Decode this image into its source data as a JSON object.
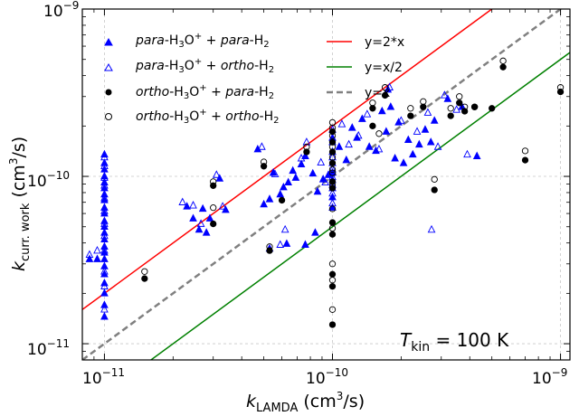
{
  "chart_data": {
    "type": "scatter",
    "xscale": "log",
    "yscale": "log",
    "xlim": [
      8e-12,
      1.1e-09
    ],
    "ylim": [
      8e-12,
      1e-09
    ],
    "grid": true,
    "legend_placement": "top-left",
    "x_major_ticks": [
      1e-11,
      1e-10,
      1e-09
    ],
    "y_major_ticks": [
      1e-11,
      1e-10,
      1e-09
    ],
    "x_tick_labels": [
      {
        "base": "10",
        "exp": "−11"
      },
      {
        "base": "10",
        "exp": "−10"
      },
      {
        "base": "10",
        "exp": "−9"
      }
    ],
    "y_tick_labels": [
      {
        "base": "10",
        "exp": "−11"
      },
      {
        "base": "10",
        "exp": "−10"
      },
      {
        "base": "10",
        "exp": "−9"
      }
    ],
    "xlabel": {
      "base": "k",
      "sub": "LAMDA",
      "unit": " (cm",
      "unit_exp": "3",
      "unit_end": "/s)"
    },
    "ylabel": {
      "base": "k",
      "sub": "curr. work",
      "unit": " (cm",
      "unit_exp": "3",
      "unit_end": "/s)"
    },
    "annotation": {
      "base": "T",
      "sub": "kin",
      "rest": " = 100 K"
    },
    "legend": [
      {
        "label": "para-H3O+ + para-H2",
        "marker": "triangle-filled",
        "color": "#0000ff"
      },
      {
        "label": "para-H3O+ + ortho-H2",
        "marker": "triangle-open",
        "color": "#0000ff"
      },
      {
        "label": "ortho-H3O+ + para-H2",
        "marker": "circle-filled",
        "color": "#000000"
      },
      {
        "label": "ortho-H3O+ + ortho-H2",
        "marker": "circle-open",
        "color": "#000000"
      },
      {
        "label": "y=2*x",
        "style": "solid",
        "color": "#ff0000"
      },
      {
        "label": "y=x/2",
        "style": "solid",
        "color": "#008000"
      },
      {
        "label": "y=x",
        "style": "dashed",
        "color": "#808080"
      }
    ],
    "lines": [
      {
        "name": "y=2*x",
        "factor": 2,
        "color": "#ff0000"
      },
      {
        "name": "y=x/2",
        "factor": 0.5,
        "color": "#008000"
      },
      {
        "name": "y=x",
        "factor": 1,
        "color": "#808080",
        "dashed": true
      }
    ],
    "series": [
      {
        "name": "para-H3O+ + para-H2",
        "marker": "triangle-filled",
        "color": "#0000ff",
        "points": [
          [
            1e-11,
            1.35e-10
          ],
          [
            1e-11,
            1.2e-10
          ],
          [
            1e-11,
            1.1e-10
          ],
          [
            1e-11,
            1e-10
          ],
          [
            1e-11,
            9.2e-11
          ],
          [
            1e-11,
            8.5e-11
          ],
          [
            1e-11,
            7.8e-11
          ],
          [
            1e-11,
            7.2e-11
          ],
          [
            1e-11,
            6.5e-11
          ],
          [
            1e-11,
            6e-11
          ],
          [
            1e-11,
            5.4e-11
          ],
          [
            1e-11,
            5e-11
          ],
          [
            1e-11,
            4.6e-11
          ],
          [
            1e-11,
            4.2e-11
          ],
          [
            1e-11,
            3.8e-11
          ],
          [
            1e-11,
            3.5e-11
          ],
          [
            1e-11,
            3.2e-11
          ],
          [
            1e-11,
            2.9e-11
          ],
          [
            1e-11,
            2.6e-11
          ],
          [
            1e-11,
            2.3e-11
          ],
          [
            1e-11,
            2e-11
          ],
          [
            1e-11,
            1.7e-11
          ],
          [
            1e-11,
            1.45e-11
          ],
          [
            8.6e-12,
            3.2e-11
          ],
          [
            9.3e-12,
            3.2e-11
          ],
          [
            2.3e-11,
            6.6e-11
          ],
          [
            2.6e-11,
            4.8e-11
          ],
          [
            2.7e-11,
            6.4e-11
          ],
          [
            2.9e-11,
            5.6e-11
          ],
          [
            3.4e-11,
            6.3e-11
          ],
          [
            3.2e-11,
            9.7e-11
          ],
          [
            4.7e-11,
            1.45e-10
          ],
          [
            5e-11,
            6.8e-11
          ],
          [
            5.3e-11,
            7.3e-11
          ],
          [
            5.5e-11,
            1.05e-10
          ],
          [
            5.9e-11,
            7.8e-11
          ],
          [
            6.1e-11,
            8.6e-11
          ],
          [
            6.4e-11,
            9.2e-11
          ],
          [
            6.7e-11,
            1.08e-10
          ],
          [
            6.9e-11,
            9.8e-11
          ],
          [
            7.3e-11,
            1.18e-10
          ],
          [
            7.6e-11,
            1.32e-10
          ],
          [
            8.2e-11,
            1.04e-10
          ],
          [
            8.6e-11,
            8.1e-11
          ],
          [
            9.1e-11,
            9.6e-11
          ],
          [
            9.6e-11,
            1.02e-10
          ],
          [
            1e-10,
            1.7e-10
          ],
          [
            1e-10,
            1.4e-10
          ],
          [
            1e-10,
            1.2e-10
          ],
          [
            1e-10,
            1.05e-10
          ],
          [
            1e-10,
            9.5e-11
          ],
          [
            1e-10,
            8.5e-11
          ],
          [
            1e-10,
            7.5e-11
          ],
          [
            1e-10,
            6.5e-11
          ],
          [
            1.07e-10,
            1.5e-10
          ],
          [
            1.15e-10,
            1.25e-10
          ],
          [
            1.22e-10,
            1.95e-10
          ],
          [
            1.28e-10,
            1.7e-10
          ],
          [
            1.35e-10,
            2.2e-10
          ],
          [
            1.45e-10,
            1.5e-10
          ],
          [
            1.55e-10,
            1.42e-10
          ],
          [
            1.65e-10,
            2.45e-10
          ],
          [
            1.72e-10,
            1.85e-10
          ],
          [
            1.8e-10,
            2.6e-10
          ],
          [
            1.88e-10,
            1.28e-10
          ],
          [
            1.95e-10,
            2.1e-10
          ],
          [
            2.05e-10,
            1.2e-10
          ],
          [
            2.15e-10,
            1.65e-10
          ],
          [
            2.25e-10,
            1.35e-10
          ],
          [
            2.4e-10,
            1.55e-10
          ],
          [
            2.55e-10,
            1.9e-10
          ],
          [
            2.7e-10,
            1.6e-10
          ],
          [
            2.8e-10,
            2.15e-10
          ],
          [
            3.2e-10,
            2.9e-10
          ],
          [
            3.7e-10,
            2.6e-10
          ],
          [
            4.3e-10,
            1.32e-10
          ],
          [
            5.3e-11,
            3.7e-11
          ],
          [
            6.3e-11,
            3.95e-11
          ],
          [
            7.6e-11,
            3.9e-11
          ],
          [
            8.4e-11,
            4.6e-11
          ],
          [
            1.75e-10,
            3.3e-10
          ],
          [
            2.8e-11,
            4.6e-11
          ],
          [
            2.45e-11,
            5.6e-11
          ]
        ]
      },
      {
        "name": "para-H3O+ + ortho-H2",
        "marker": "triangle-open",
        "color": "#0000ff",
        "points": [
          [
            1e-11,
            1.3e-10
          ],
          [
            1e-11,
            1.15e-10
          ],
          [
            1e-11,
            9.8e-11
          ],
          [
            1e-11,
            8.8e-11
          ],
          [
            1e-11,
            7.4e-11
          ],
          [
            1e-11,
            6.2e-11
          ],
          [
            1e-11,
            5.2e-11
          ],
          [
            1e-11,
            4.4e-11
          ],
          [
            1e-11,
            3.6e-11
          ],
          [
            1e-11,
            2.7e-11
          ],
          [
            1e-11,
            2.2e-11
          ],
          [
            1e-11,
            1.6e-11
          ],
          [
            8.6e-12,
            3.4e-11
          ],
          [
            9.3e-12,
            3.6e-11
          ],
          [
            2.2e-11,
            7e-11
          ],
          [
            2.45e-11,
            6.7e-11
          ],
          [
            2.65e-11,
            5.2e-11
          ],
          [
            3.1e-11,
            1.02e-10
          ],
          [
            3.3e-11,
            6.6e-11
          ],
          [
            4.9e-11,
            1.5e-10
          ],
          [
            5.6e-11,
            1.03e-10
          ],
          [
            5.9e-11,
            3.9e-11
          ],
          [
            6.2e-11,
            4.8e-11
          ],
          [
            7.3e-11,
            1.28e-10
          ],
          [
            7.7e-11,
            1.6e-10
          ],
          [
            8.9e-11,
            1.21e-10
          ],
          [
            9.3e-11,
            9.2e-11
          ],
          [
            1e-10,
            1.9e-10
          ],
          [
            1e-10,
            1.6e-10
          ],
          [
            1e-10,
            1.3e-10
          ],
          [
            1e-10,
            1.1e-10
          ],
          [
            1e-10,
            9.9e-11
          ],
          [
            1e-10,
            8.9e-11
          ],
          [
            1e-10,
            7.9e-11
          ],
          [
            1e-10,
            6.9e-11
          ],
          [
            1.1e-10,
            2.05e-10
          ],
          [
            1.18e-10,
            1.55e-10
          ],
          [
            1.3e-10,
            1.75e-10
          ],
          [
            1.42e-10,
            2.35e-10
          ],
          [
            1.6e-10,
            1.45e-10
          ],
          [
            1.78e-10,
            3.4e-10
          ],
          [
            2e-10,
            2.15e-10
          ],
          [
            2.35e-10,
            1.85e-10
          ],
          [
            2.62e-10,
            2.4e-10
          ],
          [
            2.9e-10,
            1.5e-10
          ],
          [
            3.1e-10,
            3.05e-10
          ],
          [
            3.5e-10,
            2.5e-10
          ],
          [
            3.9e-10,
            1.35e-10
          ],
          [
            2.72e-10,
            4.8e-11
          ]
        ]
      },
      {
        "name": "ortho-H3O+ + para-H2",
        "marker": "circle-filled",
        "color": "#000000",
        "points": [
          [
            1.5e-11,
            2.45e-11
          ],
          [
            3e-11,
            5.2e-11
          ],
          [
            3e-11,
            8.8e-11
          ],
          [
            5e-11,
            1.15e-10
          ],
          [
            5.3e-11,
            3.6e-11
          ],
          [
            6e-11,
            7.2e-11
          ],
          [
            7.7e-11,
            1.4e-10
          ],
          [
            1e-10,
            1.85e-10
          ],
          [
            1e-10,
            1.6e-10
          ],
          [
            1e-10,
            1.4e-10
          ],
          [
            1e-10,
            1.2e-10
          ],
          [
            1e-10,
            9.3e-11
          ],
          [
            1e-10,
            8.5e-11
          ],
          [
            1e-10,
            5.3e-11
          ],
          [
            1e-10,
            4.5e-11
          ],
          [
            1e-10,
            2.6e-11
          ],
          [
            1e-10,
            2.2e-11
          ],
          [
            1e-10,
            1.3e-11
          ],
          [
            1.5e-10,
            2.55e-10
          ],
          [
            1.5e-10,
            2e-10
          ],
          [
            1.7e-10,
            3.05e-10
          ],
          [
            2.2e-10,
            2.3e-10
          ],
          [
            2.5e-10,
            2.6e-10
          ],
          [
            2.8e-10,
            8.3e-11
          ],
          [
            3.3e-10,
            2.3e-10
          ],
          [
            3.6e-10,
            2.75e-10
          ],
          [
            3.8e-10,
            2.45e-10
          ],
          [
            4.2e-10,
            2.6e-10
          ],
          [
            5e-10,
            2.55e-10
          ],
          [
            5.6e-10,
            4.5e-10
          ],
          [
            7e-10,
            1.25e-10
          ],
          [
            1e-09,
            3.2e-10
          ]
        ]
      },
      {
        "name": "ortho-H3O+ + ortho-H2",
        "marker": "circle-open",
        "color": "#000000",
        "points": [
          [
            1.5e-11,
            2.7e-11
          ],
          [
            3e-11,
            9.3e-11
          ],
          [
            3e-11,
            6.5e-11
          ],
          [
            5e-11,
            1.22e-10
          ],
          [
            5.3e-11,
            3.8e-11
          ],
          [
            7.7e-11,
            1.5e-10
          ],
          [
            1e-10,
            2.1e-10
          ],
          [
            1e-10,
            1.95e-10
          ],
          [
            1e-10,
            1.75e-10
          ],
          [
            1e-10,
            1.5e-10
          ],
          [
            1e-10,
            1.3e-10
          ],
          [
            1e-10,
            1.1e-10
          ],
          [
            1e-10,
            1.05e-10
          ],
          [
            1e-10,
            8.9e-11
          ],
          [
            1e-10,
            6.4e-11
          ],
          [
            1e-10,
            4.9e-11
          ],
          [
            1e-10,
            3e-11
          ],
          [
            1e-10,
            2.4e-11
          ],
          [
            1e-10,
            1.6e-11
          ],
          [
            1.5e-10,
            2.75e-10
          ],
          [
            1.6e-10,
            1.8e-10
          ],
          [
            1.7e-10,
            3.4e-10
          ],
          [
            2.2e-10,
            2.55e-10
          ],
          [
            2.5e-10,
            2.8e-10
          ],
          [
            2.8e-10,
            9.6e-11
          ],
          [
            3.3e-10,
            2.55e-10
          ],
          [
            3.6e-10,
            3e-10
          ],
          [
            3.8e-10,
            2.6e-10
          ],
          [
            4.2e-10,
            2.6e-10
          ],
          [
            5.6e-10,
            4.9e-10
          ],
          [
            7e-10,
            1.42e-10
          ],
          [
            1e-09,
            3.4e-10
          ]
        ]
      }
    ]
  }
}
